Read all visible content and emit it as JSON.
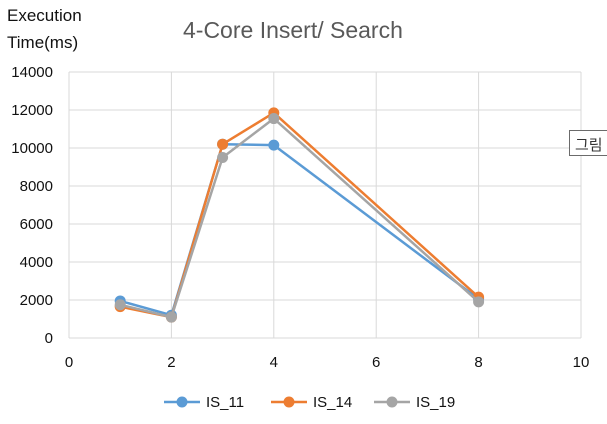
{
  "chart_data": {
    "type": "scatter-line",
    "title": "4-Core Insert/ Search",
    "ylabel_lines": [
      "Execution",
      "Time(ms)"
    ],
    "xlabel": "",
    "xlim": [
      0,
      10
    ],
    "ylim": [
      0,
      14000
    ],
    "x_ticks": [
      0,
      2,
      4,
      6,
      8,
      10
    ],
    "y_ticks": [
      0,
      2000,
      4000,
      6000,
      8000,
      10000,
      12000,
      14000
    ],
    "grid": true,
    "legend_position": "bottom",
    "series": [
      {
        "name": "IS_11",
        "color": "#5b9bd5",
        "points": [
          [
            1,
            1950
          ],
          [
            2,
            1200
          ],
          [
            3,
            10200
          ],
          [
            4,
            10150
          ],
          [
            8,
            2050
          ]
        ]
      },
      {
        "name": "IS_14",
        "color": "#ed7d31",
        "points": [
          [
            1,
            1650
          ],
          [
            2,
            1100
          ],
          [
            3,
            10200
          ],
          [
            4,
            11850
          ],
          [
            8,
            2150
          ]
        ]
      },
      {
        "name": "IS_19",
        "color": "#a5a5a5",
        "points": [
          [
            1,
            1750
          ],
          [
            2,
            1100
          ],
          [
            3,
            9500
          ],
          [
            4,
            11550
          ],
          [
            8,
            1900
          ]
        ]
      }
    ]
  },
  "overlay_tag": "그림"
}
